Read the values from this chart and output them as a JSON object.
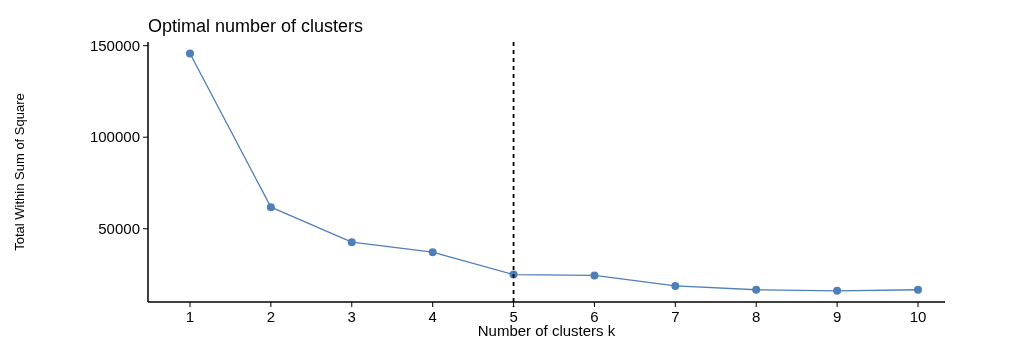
{
  "chart_data": {
    "type": "line",
    "title": "Optimal number of clusters",
    "xlabel": "Number of clusters k",
    "ylabel": "Total Within Sum of Square",
    "categories": [
      "1",
      "2",
      "3",
      "4",
      "5",
      "6",
      "7",
      "8",
      "9",
      "10"
    ],
    "series": [
      {
        "color": "#4f7fb8",
        "values": [
          145700,
          61800,
          42700,
          37200,
          25000,
          24500,
          18800,
          16700,
          16100,
          16700
        ]
      }
    ],
    "marker": "circle",
    "line_style": "solid",
    "ylim": [
      10000,
      152000
    ],
    "yticks": [
      50000,
      100000,
      150000
    ],
    "ref_lines": [
      {
        "axis": "x",
        "value": "5",
        "color": "#000000",
        "line_style": "dashed"
      }
    ]
  }
}
